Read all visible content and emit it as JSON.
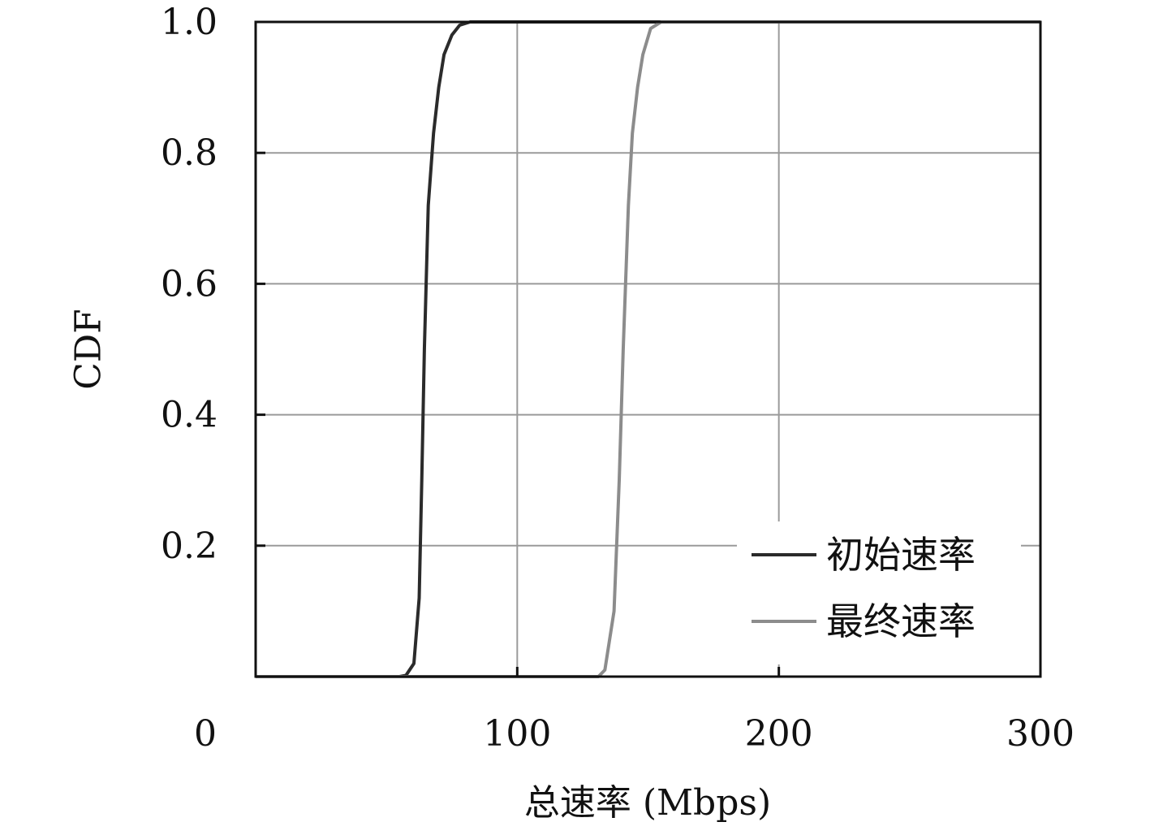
{
  "chart_data": {
    "type": "line",
    "title": "",
    "xlabel": "总速率 (Mbps)",
    "ylabel": "CDF",
    "xlim": [
      0,
      300
    ],
    "ylim": [
      0,
      1
    ],
    "x_ticks": [
      0,
      100,
      200,
      300
    ],
    "x_tick_labels": [
      "0",
      "100",
      "200",
      "300"
    ],
    "y_ticks": [
      0.2,
      0.4,
      0.6,
      0.8,
      1.0
    ],
    "y_tick_labels": [
      "0.2",
      "0.4",
      "0.6",
      "0.8",
      "1.0"
    ],
    "grid": true,
    "legend_position": "bottom-right",
    "series": [
      {
        "name": "初始速率",
        "color": "#2b2b2b",
        "points": [
          [
            0,
            0
          ],
          [
            55,
            0
          ],
          [
            57.5,
            0.002
          ],
          [
            60.5,
            0.02
          ],
          [
            62.5,
            0.12
          ],
          [
            63.5,
            0.3
          ],
          [
            64.5,
            0.5
          ],
          [
            66,
            0.72
          ],
          [
            68,
            0.83
          ],
          [
            70,
            0.9
          ],
          [
            72,
            0.95
          ],
          [
            75,
            0.98
          ],
          [
            78,
            0.995
          ],
          [
            82,
            1.0
          ],
          [
            300,
            1.0
          ]
        ]
      },
      {
        "name": "最终速率",
        "color": "#8c8c8c",
        "points": [
          [
            0,
            0
          ],
          [
            131,
            0
          ],
          [
            133.5,
            0.01
          ],
          [
            137,
            0.1
          ],
          [
            139,
            0.3
          ],
          [
            140.5,
            0.5
          ],
          [
            142.5,
            0.72
          ],
          [
            144,
            0.83
          ],
          [
            146,
            0.9
          ],
          [
            148,
            0.95
          ],
          [
            151,
            0.99
          ],
          [
            155,
            1.0
          ],
          [
            300,
            1.0
          ]
        ]
      }
    ]
  }
}
